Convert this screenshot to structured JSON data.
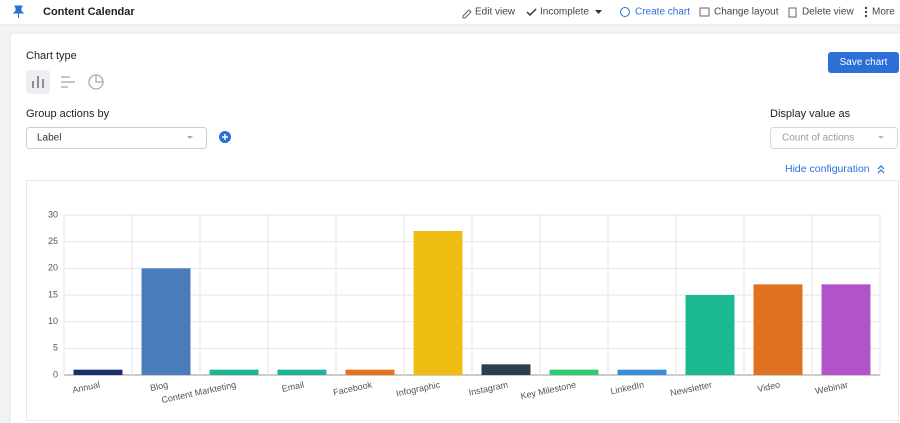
{
  "header": {
    "title": "Content Calendar",
    "actions": [
      "Edit view",
      "Incomplete",
      "Create chart",
      "Change layout",
      "Delete view",
      "More"
    ]
  },
  "config": {
    "chart_type_label": "Chart type",
    "save_button": "Save chart",
    "group_label": "Group actions by",
    "group_value": "Label",
    "display_label": "Display value as",
    "display_value": "Count of actions",
    "hide_link": "Hide configuration"
  },
  "chart_data": {
    "type": "bar",
    "categories": [
      "Annual",
      "Blog",
      "Content Markteting",
      "Email",
      "Facebook",
      "Infographic",
      "Instagram",
      "Key Milestone",
      "LinkedIn",
      "Newsletter",
      "Video",
      "Webinar"
    ],
    "values": [
      1,
      20,
      1,
      1,
      1,
      27,
      2,
      1,
      1,
      15,
      17,
      17
    ],
    "colors": [
      "#1b2f6e",
      "#4a7cbc",
      "#1db597",
      "#1fb39a",
      "#e5721f",
      "#f0be12",
      "#2c3e50",
      "#2ecc71",
      "#3b8ed6",
      "#1bb892",
      "#e0721f",
      "#b353c9"
    ],
    "ylim": [
      0,
      30
    ],
    "yticks": [
      0,
      5,
      10,
      15,
      20,
      25,
      30
    ],
    "grid": true
  }
}
